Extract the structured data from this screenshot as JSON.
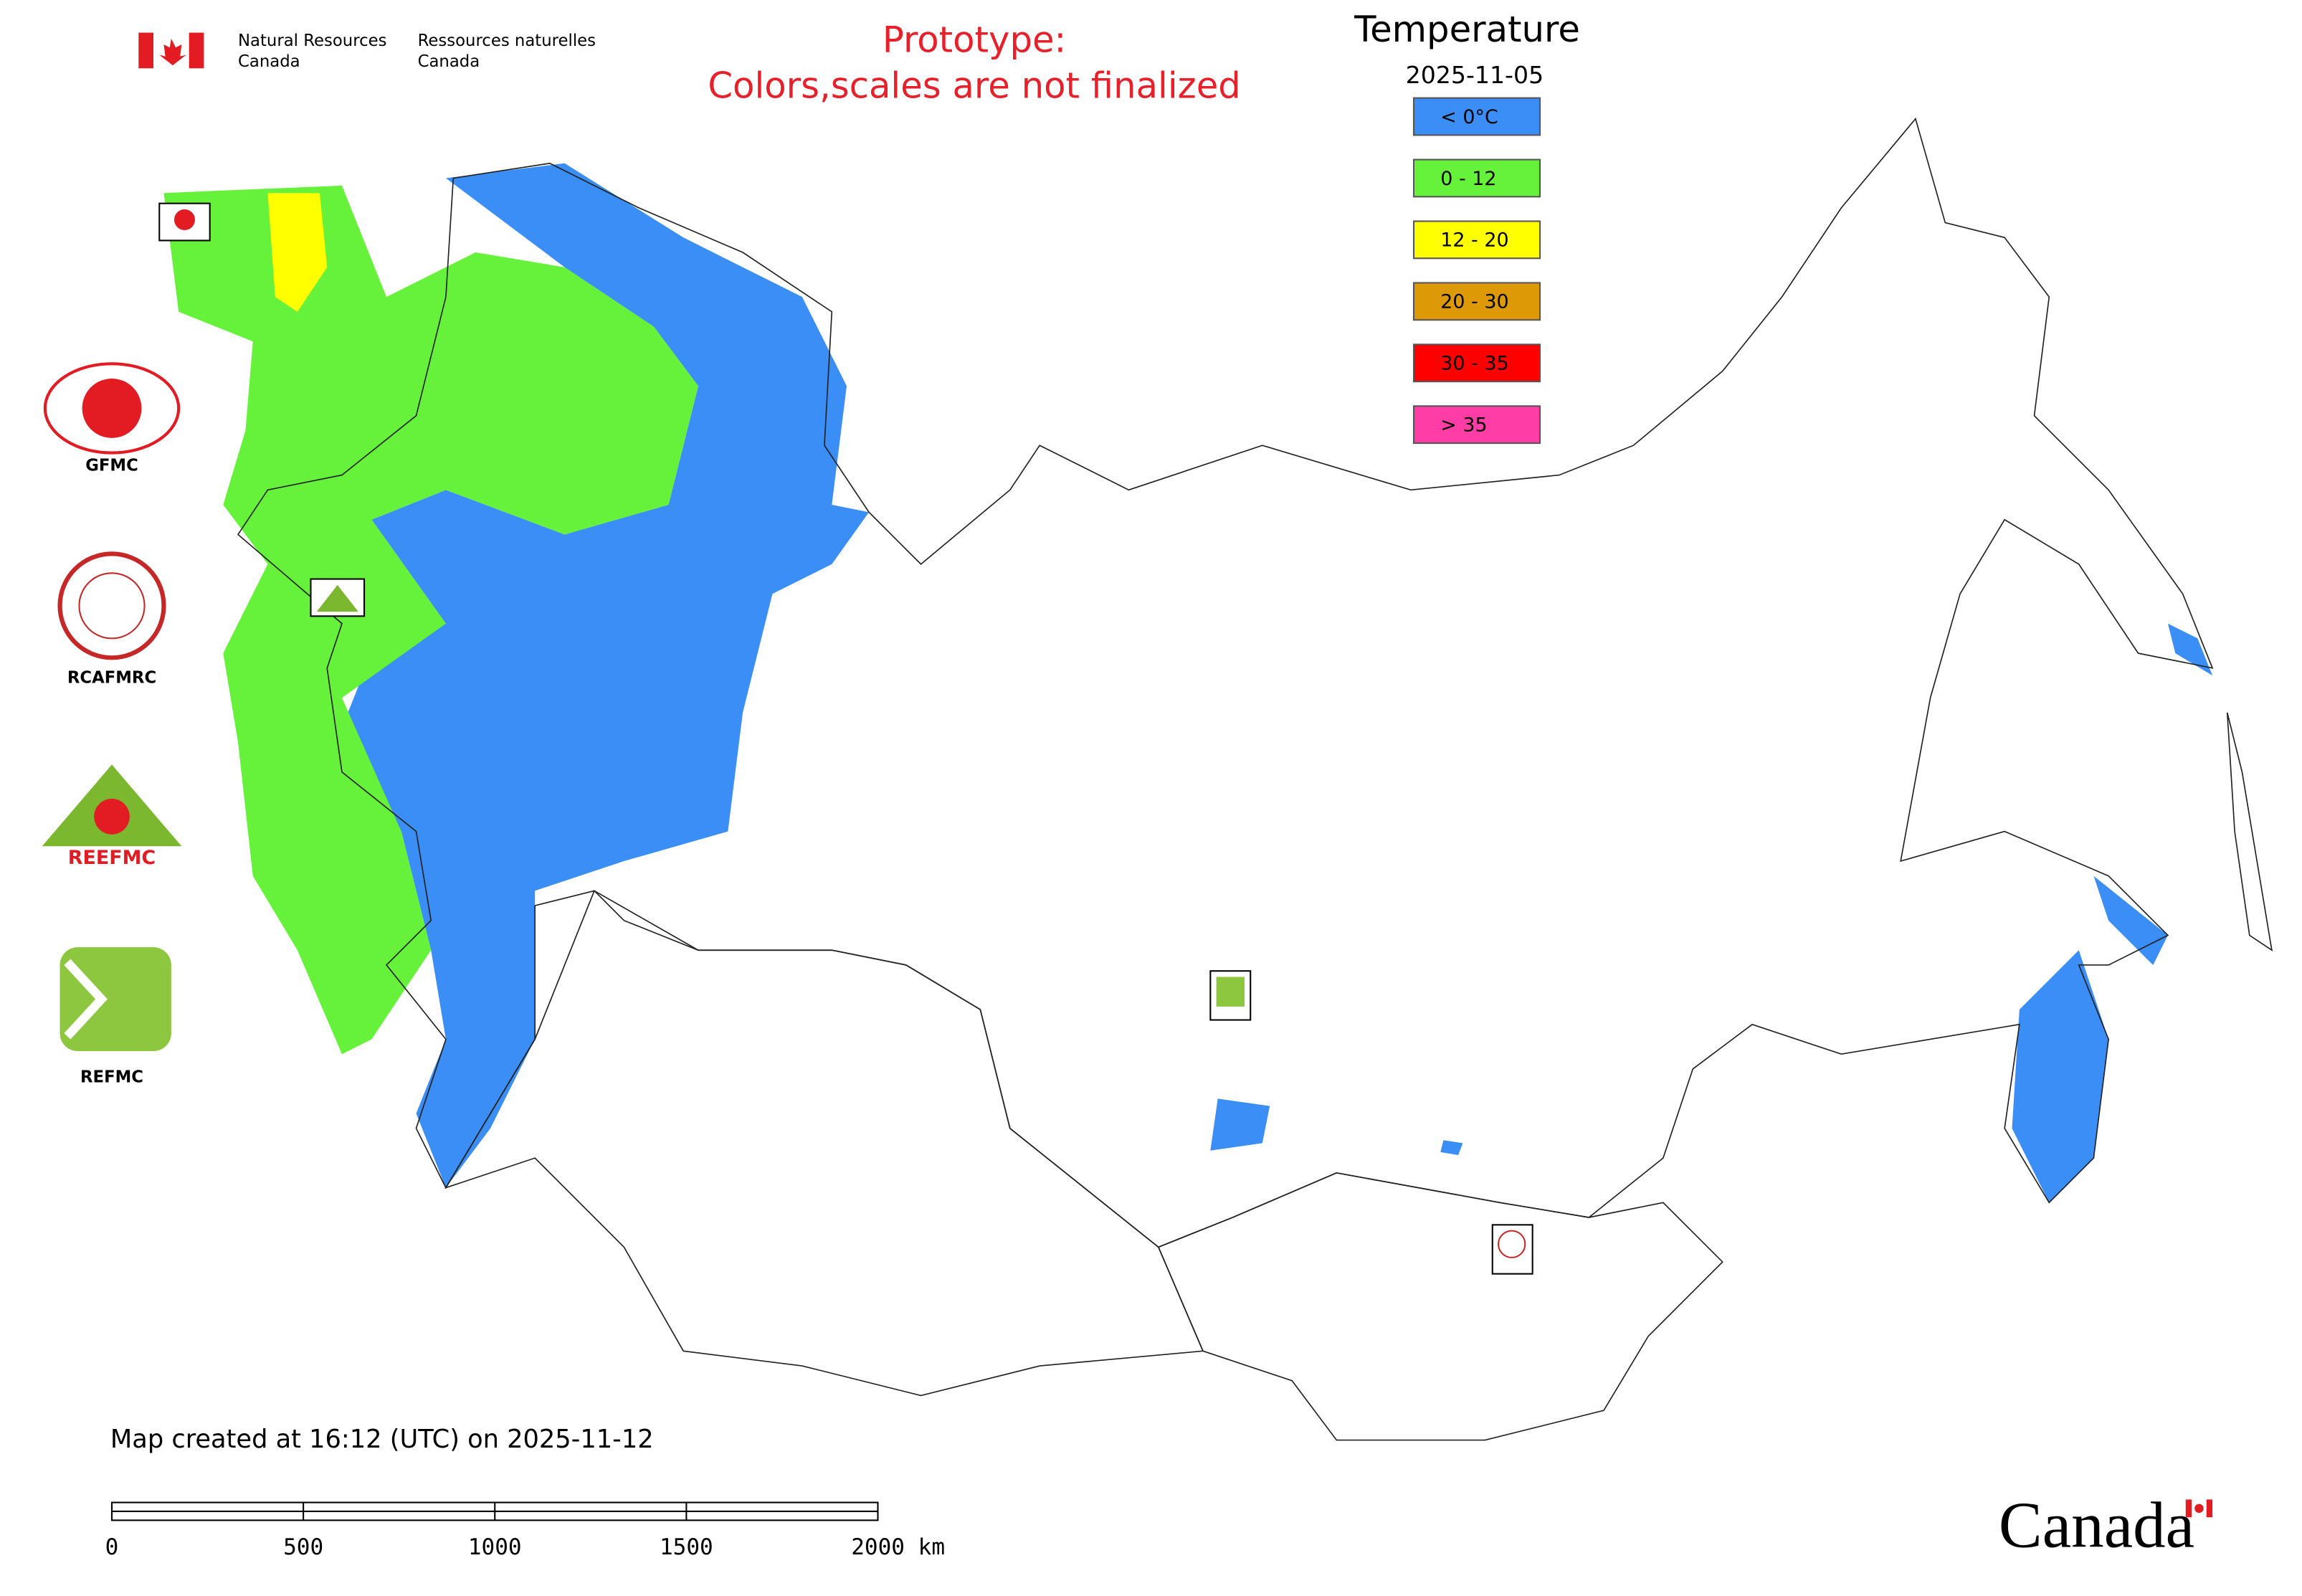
{
  "header": {
    "en_line1": "Natural Resources",
    "en_line2": "Canada",
    "fr_line1": "Ressources naturelles",
    "fr_line2": "Canada"
  },
  "notice": {
    "line1": "Prototype:",
    "line2": "Colors,scales are not finalized"
  },
  "legend": {
    "title": "Temperature",
    "date": "2025-11-05",
    "items": [
      {
        "label": "< 0°C",
        "color": "#3a8ef5"
      },
      {
        "label": "0 - 12",
        "color": "#66f23a"
      },
      {
        "label": "12 - 20",
        "color": "#ffff00"
      },
      {
        "label": "20 - 30",
        "color": "#dd9a06"
      },
      {
        "label": "30 - 35",
        "color": "#ff0000"
      },
      {
        "label": "> 35",
        "color": "#ff3da6"
      }
    ]
  },
  "logos": {
    "gfmc": "GFMC",
    "rcafmrc": "RCAFMRC",
    "reefmc_mark": "REEFMC",
    "refmc": "REFMC"
  },
  "footer": {
    "created": "Map created at 16:12 (UTC) on 2025-11-12",
    "scale": [
      "0",
      "500",
      "1000",
      "1500",
      "2000 km"
    ],
    "wordmark": "Canada"
  }
}
